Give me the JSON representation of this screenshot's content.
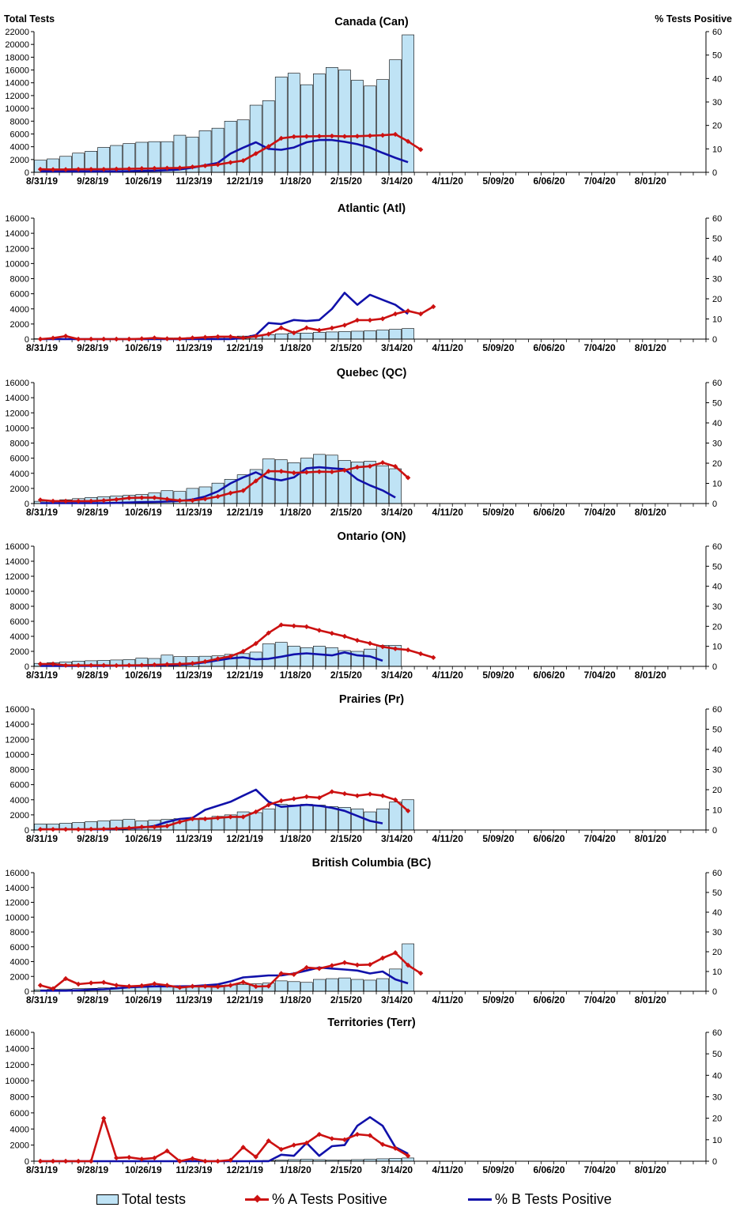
{
  "axis_titles": {
    "left": "Total Tests",
    "right": "% Tests Positive"
  },
  "x_tick_labels": [
    "8/31/19",
    "9/28/19",
    "10/26/19",
    "11/23/19",
    "12/21/19",
    "1/18/20",
    "2/15/20",
    "3/14/20",
    "4/11/20",
    "5/09/20",
    "6/06/20",
    "7/04/20",
    "8/01/20"
  ],
  "legend": {
    "bars": "Total tests",
    "line_a": "% A Tests Positive",
    "line_b": "% B Tests Positive"
  },
  "colors": {
    "bars": "#bfe3f5",
    "line_a": "#cc1111",
    "line_b": "#1111aa",
    "axis": "#000000"
  },
  "chart_data": [
    {
      "type": "bar+line",
      "title": "Canada (Can)",
      "ylabel": "Total Tests",
      "y2label": "% Tests Positive",
      "ylim": [
        0,
        22000
      ],
      "y_ticks": [
        0,
        2000,
        4000,
        6000,
        8000,
        10000,
        12000,
        14000,
        16000,
        18000,
        20000,
        22000
      ],
      "y2lim": [
        0,
        60
      ],
      "y2_ticks": [
        0,
        10,
        20,
        30,
        40,
        50,
        60
      ],
      "n_weeks": 53,
      "total_tests": [
        1900,
        2100,
        2500,
        3000,
        3300,
        3900,
        4200,
        4500,
        4700,
        4800,
        4800,
        5800,
        5500,
        6500,
        6900,
        8000,
        8200,
        10500,
        11200,
        14900,
        15500,
        13700,
        15400,
        16400,
        16000,
        14400,
        13500,
        14500,
        17600,
        21500
      ],
      "pct_a": [
        1.3,
        1.2,
        1.2,
        1.3,
        1.3,
        1.3,
        1.4,
        1.5,
        1.6,
        1.7,
        1.8,
        1.9,
        2.3,
        2.8,
        3.3,
        4.2,
        5.0,
        8.0,
        11.0,
        14.5,
        15.2,
        15.3,
        15.4,
        15.5,
        15.3,
        15.4,
        15.6,
        15.8,
        16.2,
        13.2,
        9.7
      ],
      "pct_b": [
        0.4,
        0.4,
        0.4,
        0.4,
        0.4,
        0.4,
        0.4,
        0.5,
        0.6,
        0.7,
        0.9,
        1.2,
        2.0,
        3.0,
        4.0,
        8.0,
        10.5,
        12.8,
        10.0,
        9.6,
        10.6,
        12.8,
        13.8,
        13.8,
        13.0,
        12.0,
        10.5,
        8.3,
        6.2,
        4.3
      ]
    },
    {
      "type": "bar+line",
      "title": "Atlantic (Atl)",
      "ylim": [
        0,
        16000
      ],
      "y_ticks": [
        0,
        2000,
        4000,
        6000,
        8000,
        10000,
        12000,
        14000,
        16000
      ],
      "y2lim": [
        0,
        60
      ],
      "y2_ticks": [
        0,
        10,
        20,
        30,
        40,
        50,
        60
      ],
      "n_weeks": 53,
      "total_tests": [
        50,
        50,
        50,
        50,
        60,
        60,
        80,
        80,
        100,
        100,
        150,
        150,
        200,
        250,
        250,
        300,
        400,
        500,
        600,
        700,
        800,
        800,
        900,
        950,
        1000,
        1050,
        1100,
        1200,
        1300,
        1400
      ],
      "pct_a": [
        0.0,
        0.5,
        1.5,
        0.0,
        0.0,
        0.0,
        0.0,
        0.0,
        0.2,
        0.6,
        0.2,
        0.2,
        0.6,
        0.9,
        1.2,
        1.2,
        0.6,
        1.4,
        2.5,
        5.6,
        3.1,
        5.6,
        4.4,
        5.5,
        6.9,
        9.4,
        9.4,
        10.1,
        12.5,
        14.0,
        12.5,
        16.1
      ],
      "pct_b": [
        0.0,
        0.0,
        0.0,
        0.0,
        0.0,
        0.0,
        0.0,
        0.0,
        0.0,
        0.0,
        0.0,
        0.0,
        0.0,
        0.0,
        0.0,
        0.0,
        0.5,
        2.0,
        8.0,
        7.5,
        9.5,
        9.0,
        9.5,
        15.0,
        23.0,
        17.0,
        22.0,
        19.5,
        17.0,
        12.5
      ]
    },
    {
      "type": "bar+line",
      "title": "Quebec (QC)",
      "ylim": [
        0,
        16000
      ],
      "y_ticks": [
        0,
        2000,
        4000,
        6000,
        8000,
        10000,
        12000,
        14000,
        16000
      ],
      "y2lim": [
        0,
        60
      ],
      "y2_ticks": [
        0,
        10,
        20,
        30,
        40,
        50,
        60
      ],
      "n_weeks": 53,
      "total_tests": [
        300,
        350,
        500,
        650,
        800,
        900,
        1000,
        1100,
        1200,
        1400,
        1700,
        1600,
        2000,
        2200,
        2700,
        3200,
        3800,
        4500,
        5900,
        5800,
        5400,
        6000,
        6500,
        6400,
        5700,
        5500,
        5600,
        5000,
        4600
      ],
      "pct_a": [
        1.8,
        1.2,
        1.2,
        1.2,
        1.2,
        1.5,
        2.0,
        2.8,
        2.9,
        2.9,
        2.2,
        1.5,
        1.5,
        2.3,
        3.5,
        5.2,
        6.4,
        11.2,
        16.0,
        16.0,
        15.2,
        15.5,
        15.8,
        15.7,
        16.5,
        18.0,
        18.5,
        20.3,
        18.4,
        12.8
      ],
      "pct_b": [
        0.2,
        0.2,
        0.2,
        0.2,
        0.2,
        0.2,
        0.3,
        0.5,
        0.7,
        0.8,
        1.0,
        1.3,
        2.0,
        3.5,
        6.0,
        10.0,
        13.0,
        15.5,
        12.5,
        11.5,
        13.0,
        17.5,
        18.0,
        17.5,
        17.0,
        12.0,
        9.0,
        6.5,
        3.0
      ]
    },
    {
      "type": "bar+line",
      "title": "Ontario (ON)",
      "ylim": [
        0,
        16000
      ],
      "y_ticks": [
        0,
        2000,
        4000,
        6000,
        8000,
        10000,
        12000,
        14000,
        16000
      ],
      "y2lim": [
        0,
        60
      ],
      "y2_ticks": [
        0,
        10,
        20,
        30,
        40,
        50,
        60
      ],
      "n_weeks": 53,
      "total_tests": [
        400,
        500,
        600,
        700,
        750,
        800,
        850,
        900,
        1100,
        1050,
        1500,
        1300,
        1300,
        1350,
        1400,
        1600,
        1700,
        1900,
        3000,
        3200,
        2700,
        2500,
        2700,
        2500,
        2100,
        2000,
        2300,
        2800,
        2800
      ],
      "pct_a": [
        1.2,
        1.2,
        0.5,
        0.5,
        0.5,
        0.5,
        0.4,
        0.5,
        0.6,
        0.8,
        1.0,
        1.2,
        1.5,
        2.4,
        3.8,
        5.0,
        7.5,
        11.4,
        16.7,
        20.7,
        20.2,
        19.8,
        18.0,
        16.5,
        15.0,
        13.0,
        11.5,
        9.8,
        8.8,
        8.2,
        6.3,
        4.4
      ],
      "pct_b": [
        0.2,
        0.2,
        0.2,
        0.2,
        0.2,
        0.2,
        0.3,
        0.3,
        0.4,
        0.5,
        0.6,
        0.8,
        1.2,
        2.0,
        3.0,
        4.0,
        4.5,
        3.5,
        3.8,
        4.8,
        6.0,
        6.5,
        6.0,
        5.5,
        7.0,
        5.5,
        5.0,
        2.8
      ]
    },
    {
      "type": "bar+line",
      "title": "Prairies (Pr)",
      "ylim": [
        0,
        16000
      ],
      "y_ticks": [
        0,
        2000,
        4000,
        6000,
        8000,
        10000,
        12000,
        14000,
        16000
      ],
      "y2lim": [
        0,
        60
      ],
      "y2_ticks": [
        0,
        10,
        20,
        30,
        40,
        50,
        60
      ],
      "n_weeks": 53,
      "total_tests": [
        800,
        800,
        900,
        1000,
        1100,
        1200,
        1300,
        1400,
        1200,
        1300,
        1400,
        1500,
        1500,
        1600,
        1800,
        2000,
        2400,
        2300,
        2800,
        3400,
        3300,
        3400,
        3300,
        3100,
        3000,
        2800,
        2400,
        2800,
        3700,
        4000
      ],
      "pct_a": [
        0.3,
        0.3,
        0.3,
        0.3,
        0.4,
        0.5,
        0.7,
        1.0,
        1.5,
        1.5,
        2.0,
        4.0,
        5.5,
        5.5,
        6.0,
        6.5,
        6.5,
        9.0,
        12.5,
        14.5,
        15.5,
        16.5,
        16.0,
        19.0,
        18.0,
        17.0,
        17.8,
        17.0,
        15.0,
        9.5
      ],
      "pct_b": [
        0.3,
        0.3,
        0.3,
        0.3,
        0.3,
        0.3,
        0.5,
        0.8,
        1.2,
        2.0,
        4.0,
        5.5,
        6.0,
        10.0,
        12.0,
        14.0,
        17.0,
        20.0,
        14.0,
        11.5,
        12.0,
        12.5,
        12.0,
        11.0,
        9.5,
        7.0,
        4.5,
        3.3
      ]
    },
    {
      "type": "bar+line",
      "title": "British Columbia (BC)",
      "ylim": [
        0,
        16000
      ],
      "y_ticks": [
        0,
        2000,
        4000,
        6000,
        8000,
        10000,
        12000,
        14000,
        16000
      ],
      "y2lim": [
        0,
        60
      ],
      "y2_ticks": [
        0,
        10,
        20,
        30,
        40,
        50,
        60
      ],
      "n_weeks": 53,
      "total_tests": [
        200,
        250,
        300,
        350,
        400,
        450,
        500,
        500,
        550,
        600,
        650,
        650,
        700,
        750,
        800,
        850,
        900,
        1000,
        1100,
        1400,
        1300,
        1200,
        1600,
        1700,
        1800,
        1600,
        1500,
        1700,
        3000,
        6400
      ],
      "pct_a": [
        3.0,
        1.3,
        6.4,
        3.6,
        4.2,
        4.5,
        3.0,
        2.5,
        2.8,
        3.8,
        3.0,
        1.9,
        2.5,
        2.5,
        2.3,
        3.0,
        4.6,
        2.4,
        2.6,
        9.0,
        8.5,
        12.0,
        11.5,
        13.0,
        14.5,
        13.3,
        13.5,
        16.8,
        19.5,
        13.2,
        9.1
      ],
      "pct_b": [
        0.3,
        0.3,
        0.3,
        0.5,
        0.8,
        1.0,
        1.5,
        2.0,
        2.3,
        2.5,
        2.5,
        2.5,
        2.6,
        3.0,
        3.5,
        5.0,
        7.0,
        7.5,
        8.0,
        8.0,
        9.0,
        10.5,
        12.0,
        11.5,
        11.0,
        10.5,
        9.0,
        10.0,
        6.0,
        4.0
      ]
    },
    {
      "type": "bar+line",
      "title": "Territories (Terr)",
      "ylim": [
        0,
        16000
      ],
      "y_ticks": [
        0,
        2000,
        4000,
        6000,
        8000,
        10000,
        12000,
        14000,
        16000
      ],
      "y2lim": [
        0,
        60
      ],
      "y2_ticks": [
        0,
        10,
        20,
        30,
        40,
        50,
        60
      ],
      "n_weeks": 53,
      "total_tests": [
        10,
        10,
        10,
        10,
        20,
        20,
        20,
        20,
        20,
        30,
        30,
        30,
        40,
        40,
        50,
        50,
        60,
        80,
        100,
        150,
        200,
        250,
        200,
        150,
        150,
        200,
        250,
        300,
        350,
        400
      ],
      "pct_a": [
        0.0,
        0.0,
        0.0,
        0.0,
        0.0,
        20.0,
        1.5,
        1.8,
        1.0,
        1.5,
        4.8,
        0.0,
        1.2,
        0.0,
        0.0,
        0.5,
        6.5,
        2.0,
        9.5,
        5.5,
        7.5,
        8.5,
        12.5,
        10.5,
        10.0,
        12.5,
        12.0,
        7.8,
        6.0,
        2.5
      ],
      "pct_b": [
        0.0,
        0.0,
        0.0,
        0.0,
        0.0,
        0.0,
        0.0,
        0.0,
        0.0,
        0.0,
        0.0,
        0.0,
        0.0,
        0.0,
        0.0,
        0.0,
        0.0,
        0.0,
        0.0,
        3.0,
        2.5,
        8.5,
        2.5,
        7.0,
        7.5,
        16.5,
        20.5,
        16.5,
        6.5,
        3.5
      ]
    }
  ]
}
